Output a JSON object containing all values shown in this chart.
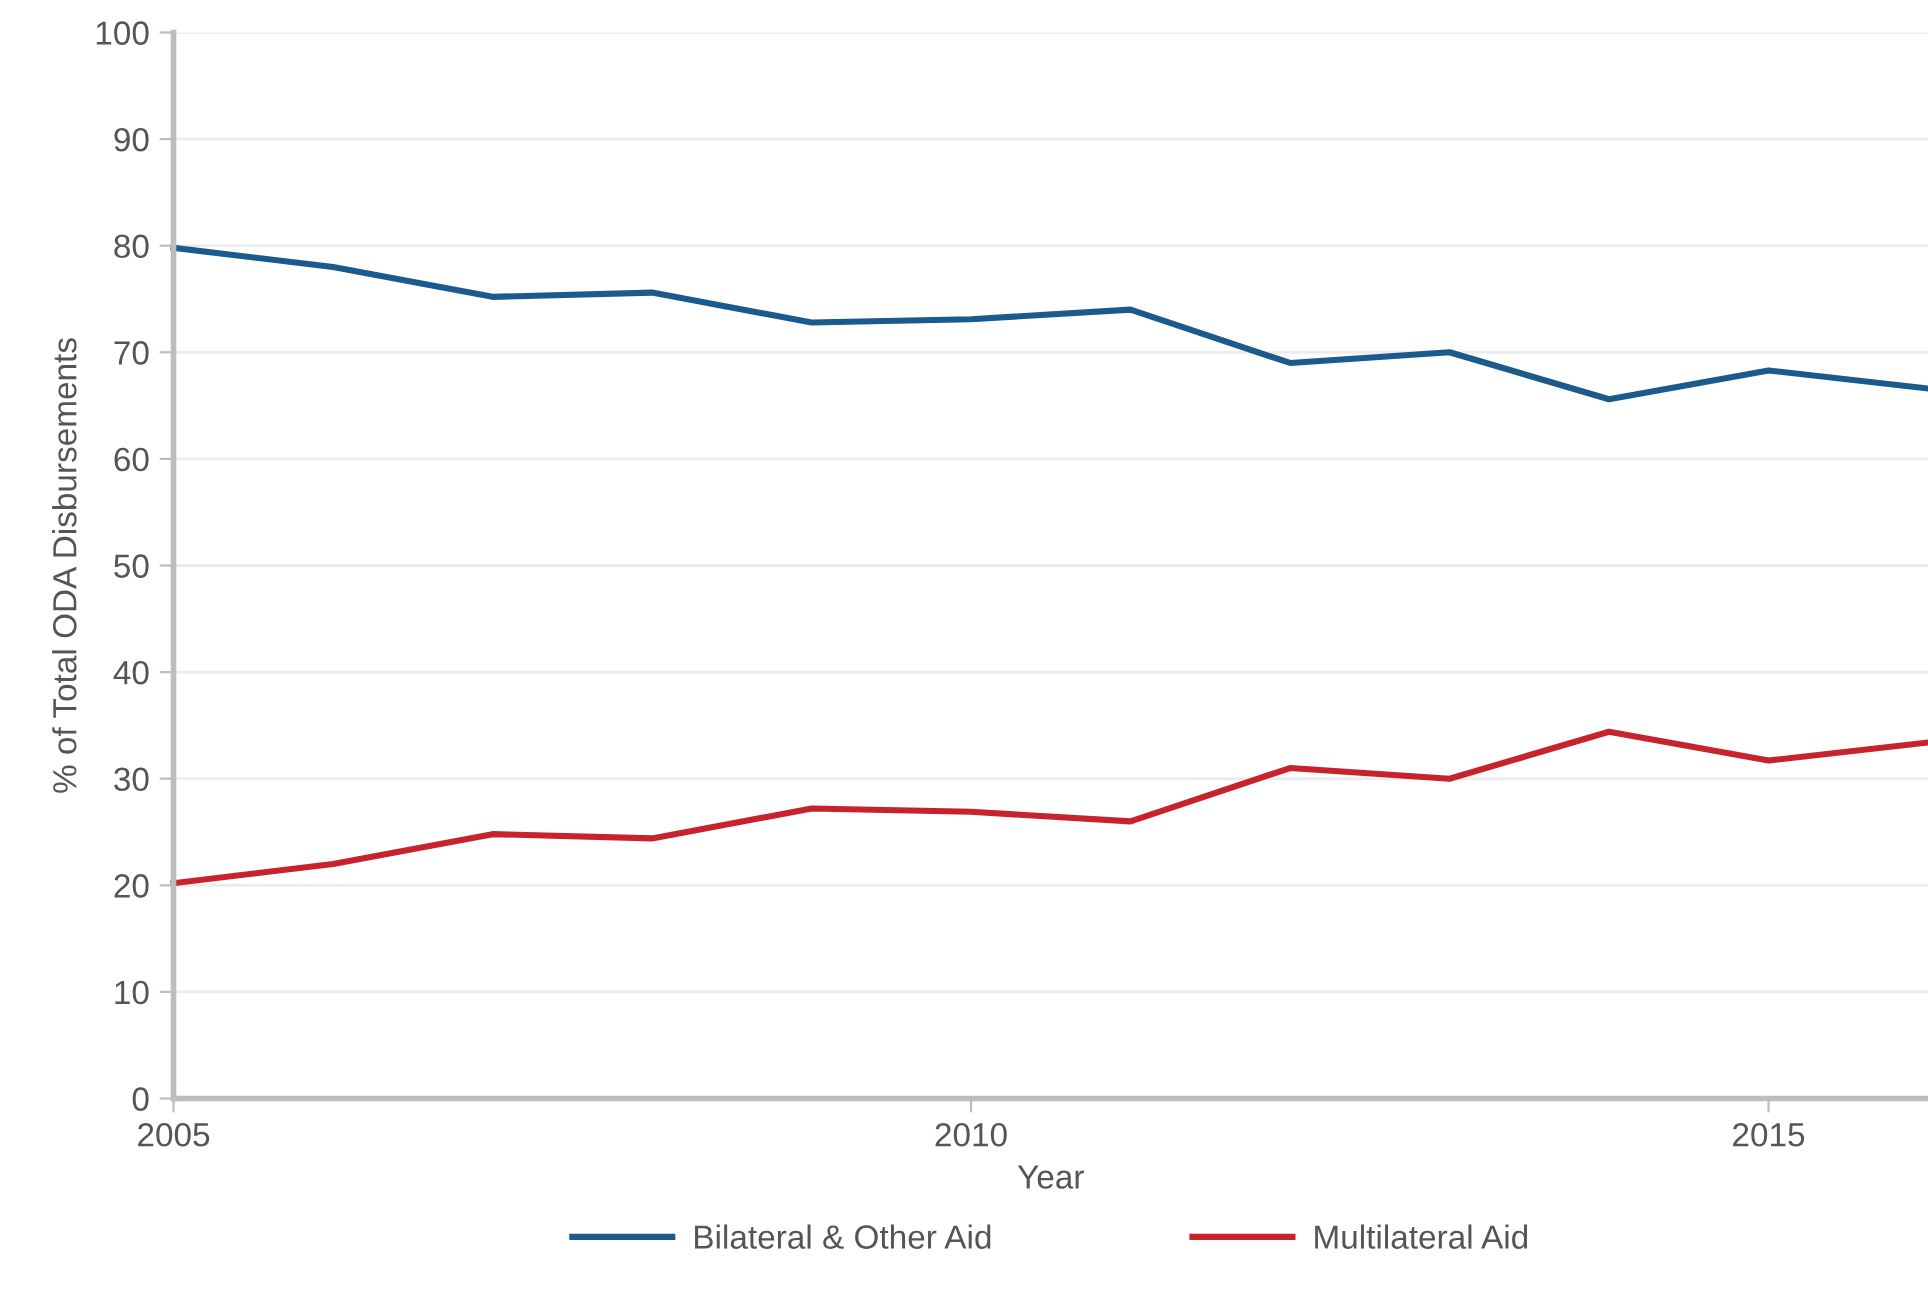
{
  "chart_data": {
    "type": "line",
    "xlabel": "Year",
    "ylabel": "% of Total ODA Disbursements",
    "x": [
      2005,
      2006,
      2007,
      2008,
      2009,
      2010,
      2011,
      2012,
      2013,
      2014,
      2015,
      2016
    ],
    "series": [
      {
        "name": "Bilateral & Other Aid",
        "color": "#1a5a8c",
        "values": [
          79.8,
          78.0,
          75.2,
          75.6,
          72.8,
          73.1,
          74.0,
          69.0,
          70.0,
          65.6,
          68.3,
          66.6
        ]
      },
      {
        "name": "Multilateral Aid",
        "color": "#c8232c",
        "values": [
          20.2,
          22.0,
          24.8,
          24.4,
          27.2,
          26.9,
          26.0,
          31.0,
          30.0,
          34.4,
          31.7,
          33.4
        ]
      }
    ],
    "xlim": [
      2005,
      2016
    ],
    "xticks": [
      2005,
      2010,
      2015
    ],
    "ylim": [
      0,
      100
    ],
    "yticks": [
      0,
      10,
      20,
      30,
      40,
      50,
      60,
      70,
      80,
      90,
      100
    ],
    "grid": "y",
    "legend": "bottom",
    "marker": "none",
    "line_style": "solid"
  }
}
